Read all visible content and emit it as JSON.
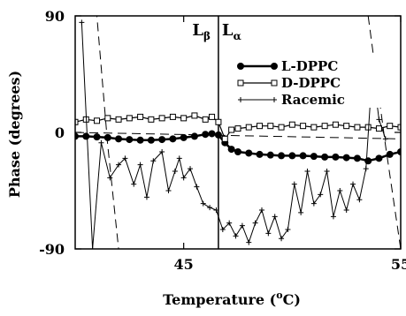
{
  "chart_data": {
    "type": "line",
    "xlabel": "Temperature (°C)",
    "xlabel_main": "Temperature (",
    "xlabel_unit_sup": "o",
    "xlabel_unit_base": "C",
    "xlabel_close": ")",
    "ylabel": "Phase (degrees)",
    "xlim": [
      40,
      55
    ],
    "ylim": [
      -90,
      90
    ],
    "x_ticks": [
      45,
      55
    ],
    "y_ticks": [
      90,
      0,
      -90
    ],
    "y_tick_labels": [
      "90",
      "0",
      "-90"
    ],
    "grid": false,
    "legend_position": "top-right",
    "annotations": [
      {
        "text": "L",
        "sub": "β",
        "x": 46.4
      },
      {
        "text": "L",
        "sub": "α",
        "x": 46.6
      }
    ],
    "phase_transition_x": 46.6,
    "series": [
      {
        "name": "L-DPPC",
        "marker": "filled-circle",
        "color": "#000000",
        "x": [
          40,
          40.5,
          41,
          41.5,
          42,
          42.5,
          43,
          43.5,
          44,
          44.5,
          45,
          45.5,
          46,
          46.3,
          46.6,
          46.9,
          47.2,
          47.5,
          48,
          48.5,
          49,
          49.5,
          50,
          50.5,
          51,
          51.5,
          52,
          52.5,
          53,
          53.5,
          54,
          54.5,
          55
        ],
        "values": [
          -3,
          -3,
          -3.5,
          -4,
          -5,
          -5.5,
          -6,
          -6,
          -5.5,
          -5,
          -4,
          -3,
          -1.5,
          -1,
          -2,
          -8,
          -13,
          -15,
          -16,
          -17,
          -17.5,
          -18,
          -18,
          -18,
          -18.5,
          -19,
          -19,
          -19.5,
          -20,
          -22,
          -20,
          -17,
          -15
        ]
      },
      {
        "name": "D-DPPC",
        "marker": "open-square",
        "color": "#000000",
        "x": [
          40,
          40.5,
          41,
          41.5,
          42,
          42.5,
          43,
          43.5,
          44,
          44.5,
          45,
          45.5,
          46,
          46.3,
          46.6,
          46.9,
          47.2,
          47.5,
          48,
          48.5,
          49,
          49.5,
          50,
          50.5,
          51,
          51.5,
          52,
          52.5,
          53,
          53.5,
          54,
          54.5,
          55
        ],
        "values": [
          8,
          10,
          9,
          11,
          10,
          11,
          12,
          10,
          11,
          12,
          11,
          13,
          10,
          12,
          8,
          -5,
          2,
          3,
          4,
          5,
          5,
          4,
          6,
          5,
          4,
          5,
          6,
          5,
          4,
          4,
          3,
          5,
          4
        ]
      },
      {
        "name": "Racemic",
        "marker": "plus",
        "color": "#000000",
        "x": [
          40.3,
          40.8,
          41.2,
          41.6,
          42,
          42.3,
          42.7,
          43,
          43.3,
          43.6,
          44,
          44.3,
          44.6,
          44.8,
          45,
          45.3,
          45.6,
          45.9,
          46.2,
          46.5,
          46.8,
          47.1,
          47.4,
          47.7,
          48,
          48.3,
          48.6,
          48.9,
          49.2,
          49.5,
          49.8,
          50.1,
          50.4,
          50.7,
          51,
          51.3,
          51.6,
          51.9,
          52.2,
          52.5,
          52.8,
          53.1,
          53.4,
          53.7,
          54,
          54.3
        ],
        "values": [
          85,
          -90,
          -8,
          -35,
          -25,
          -20,
          -40,
          -25,
          -50,
          -22,
          -15,
          -45,
          -30,
          -20,
          -35,
          -28,
          -42,
          -55,
          -58,
          -60,
          -75,
          -70,
          -80,
          -72,
          -85,
          -70,
          -60,
          -78,
          -65,
          -82,
          -75,
          -40,
          -62,
          -30,
          -55,
          -48,
          -30,
          -65,
          -45,
          -60,
          -40,
          -52,
          -28,
          50,
          10,
          -5
        ]
      }
    ],
    "dashed_lines": [
      {
        "name": "dash-a",
        "x": [
          40,
          55
        ],
        "values": [
          0,
          -5
        ]
      },
      {
        "name": "dash-b",
        "x": [
          40,
          41,
          41.5,
          42,
          55
        ],
        "values": [
          90,
          90,
          -10,
          -90,
          -90
        ]
      },
      {
        "name": "dash-c",
        "x": [
          53.5,
          54.3,
          55
        ],
        "values": [
          90,
          -10,
          -90
        ]
      }
    ]
  }
}
